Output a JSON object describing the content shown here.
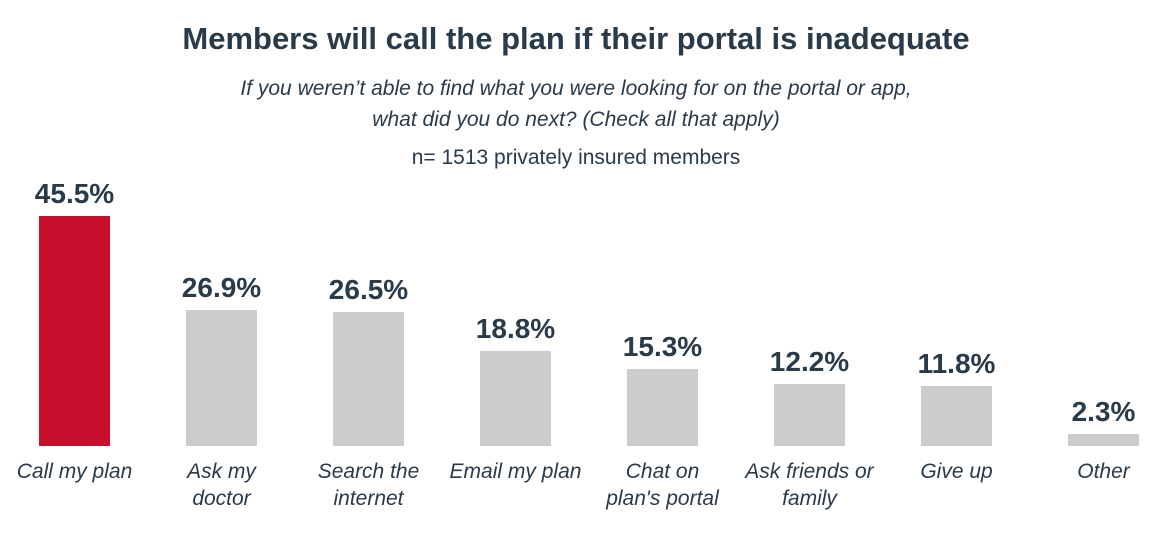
{
  "page": {
    "background": "#FFFFFF"
  },
  "header": {
    "title": "Members will call the plan if their portal is inadequate",
    "subtitle_lines": [
      "If you weren’t able to find what you were looking for on the portal or app,",
      "what did you do next? (Check all that apply)"
    ],
    "sample_note": "n= 1513 privately insured members"
  },
  "chart_data": {
    "type": "bar",
    "title": "Members will call the plan if their portal is inadequate",
    "subtitle": "If you weren’t able to find what you were looking for on the portal or app, what did you do next? (Check all that apply)",
    "sample_note": "n= 1513 privately insured members",
    "categories": [
      "Call my plan",
      "Ask my doctor",
      "Search the internet",
      "Email my plan",
      "Chat on plan's portal",
      "Ask friends or family",
      "Give up",
      "Other"
    ],
    "category_label_lines": [
      [
        "Call my plan"
      ],
      [
        "Ask my",
        "doctor"
      ],
      [
        "Search the",
        "internet"
      ],
      [
        "Email my plan"
      ],
      [
        "Chat on",
        "plan's portal"
      ],
      [
        "Ask friends or",
        "family"
      ],
      [
        "Give up"
      ],
      [
        "Other"
      ]
    ],
    "values": [
      45.5,
      26.9,
      26.5,
      18.8,
      15.3,
      12.2,
      11.8,
      2.3
    ],
    "value_labels": [
      "45.5%",
      "26.9%",
      "26.5%",
      "18.8%",
      "15.3%",
      "12.2%",
      "11.8%",
      "2.3%"
    ],
    "unit": "%",
    "highlighted_index": 0,
    "colors": {
      "highlight": "#C8102E",
      "default": "#CCCCCC",
      "text": "#293A4A"
    },
    "xlabel": "",
    "ylabel": "",
    "ylim": [
      0,
      50
    ],
    "grid": false,
    "legend": false,
    "value_labels_position": "above-bars"
  }
}
